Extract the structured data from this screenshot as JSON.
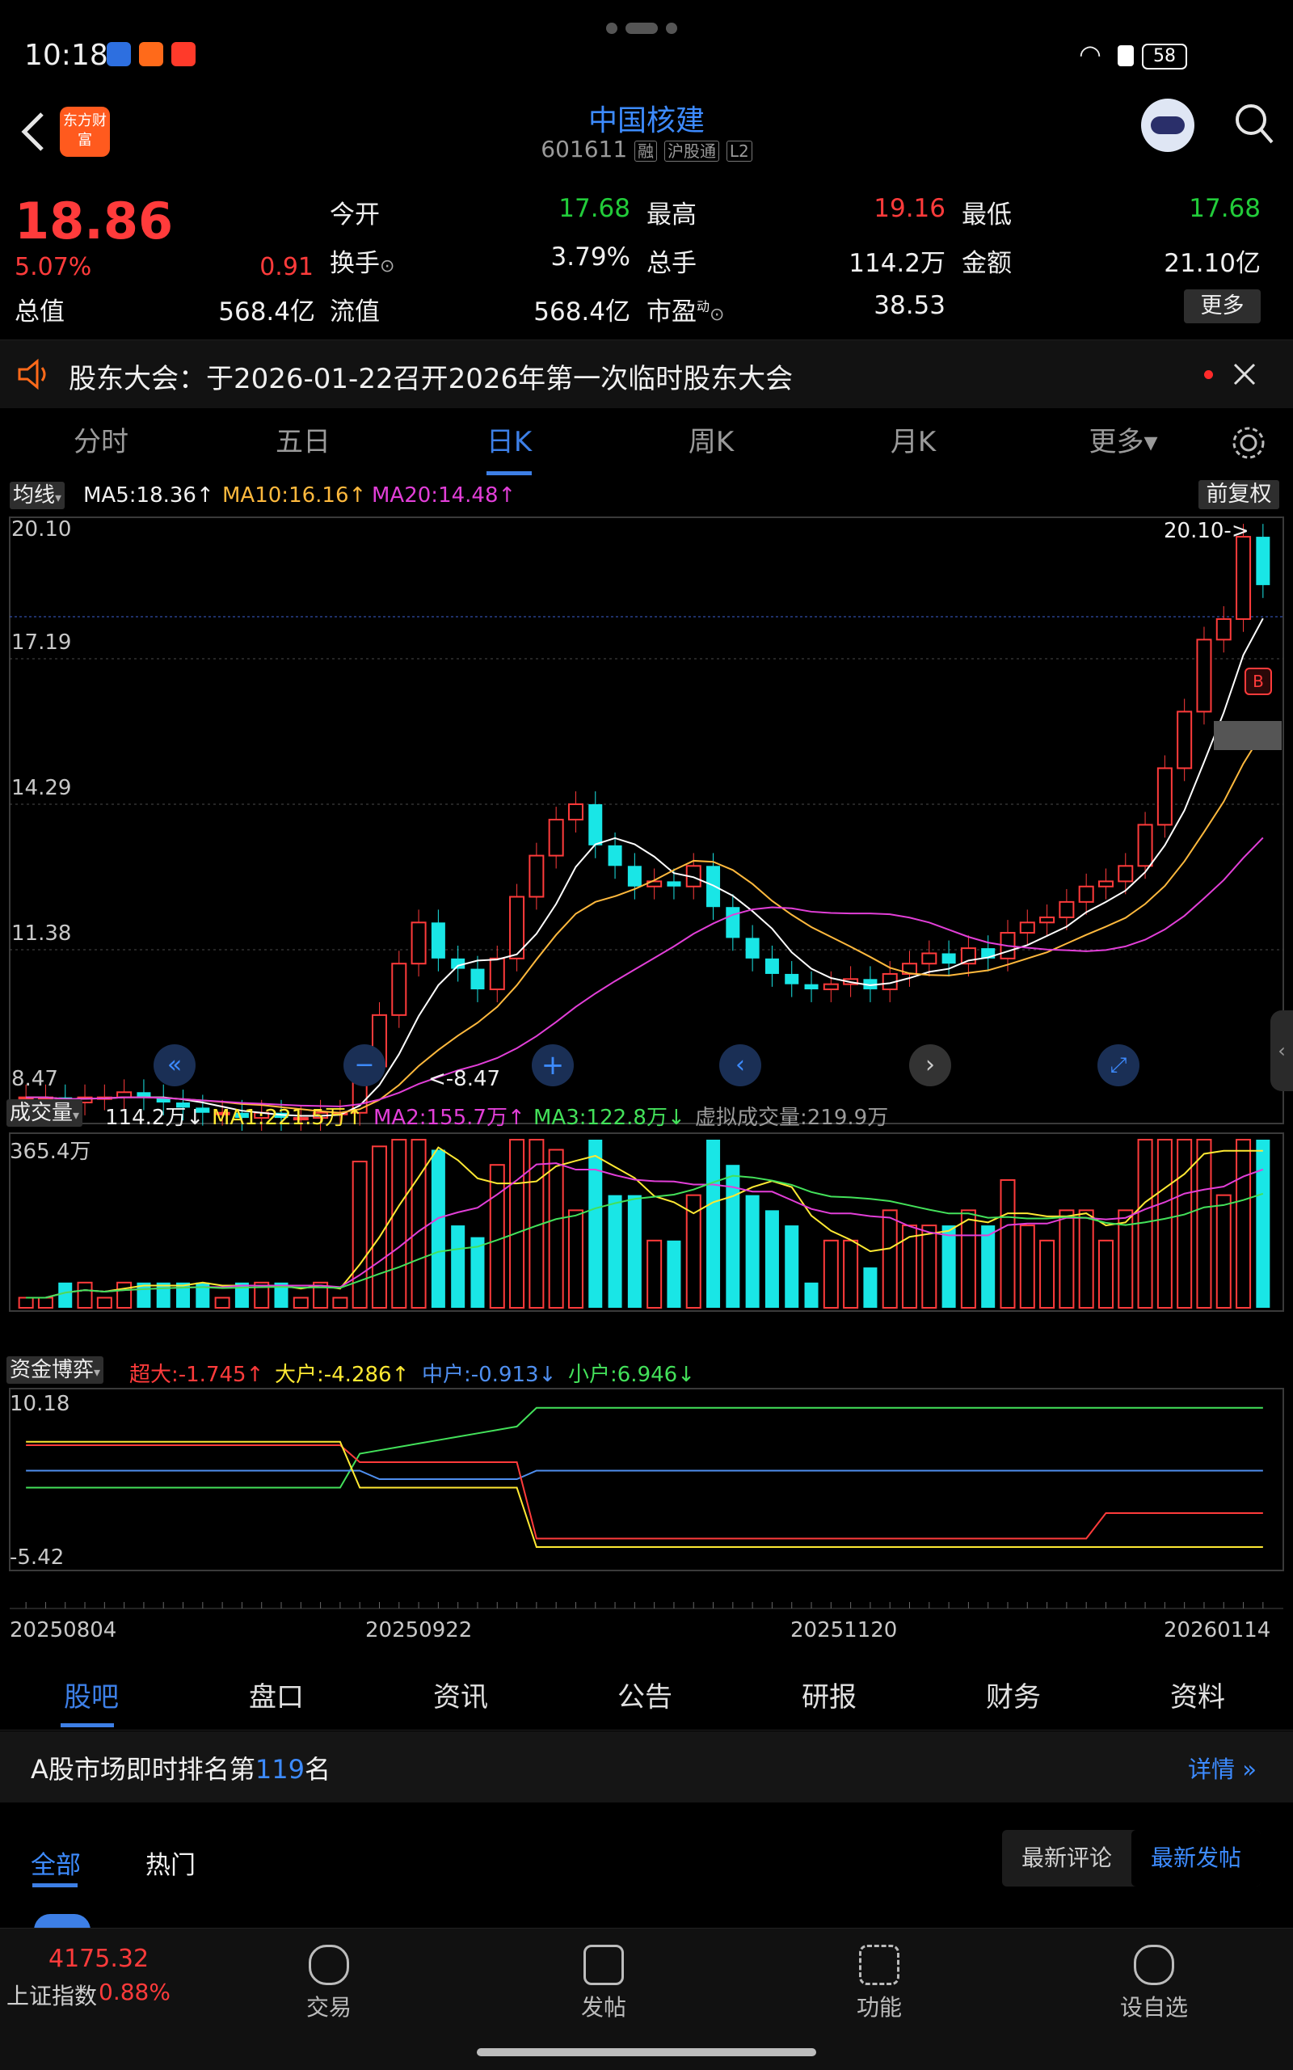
{
  "status": {
    "time": "10:18",
    "battery": "58"
  },
  "header": {
    "logo_text": "东方财富",
    "title": "中国核建",
    "code": "601611",
    "tags": [
      "融",
      "沪股通",
      "L2"
    ]
  },
  "quote": {
    "price": "18.86",
    "change_pct": "5.07%",
    "change": "0.91",
    "open_label": "今开",
    "open": "17.68",
    "high_label": "最高",
    "high": "19.16",
    "low_label": "最低",
    "low": "17.68",
    "turnover_label": "换手",
    "turnover": "3.79%",
    "volume_label": "总手",
    "volume": "114.2万",
    "amount_label": "金额",
    "amount": "21.10亿",
    "total_cap_label": "总值",
    "total_cap": "568.4亿",
    "float_cap_label": "流值",
    "float_cap": "568.4亿",
    "pe_label": "市盈",
    "pe_sup": "动",
    "pe": "38.53",
    "more_button": "更多"
  },
  "notice": {
    "text": "股东大会：于2026-01-22召开2026年第一次临时股东大会"
  },
  "chart_tabs": [
    "分时",
    "五日",
    "日K",
    "周K",
    "月K",
    "更多▾"
  ],
  "active_chart_tab": "日K",
  "kline": {
    "indicator_button": "均线",
    "ma5": "MA5:18.36↑",
    "ma10": "MA10:16.16↑",
    "ma20": "MA20:14.48↑",
    "adjust_button": "前复权",
    "y_labels": [
      "20.10",
      "17.19",
      "14.29",
      "11.38",
      "8.47"
    ],
    "max_marker": "20.10->",
    "min_marker": "<-8.47",
    "b_marker": "B"
  },
  "volume": {
    "indicator_button": "成交量",
    "current": "114.2万↓",
    "ma1": "MA1:221.5万↑",
    "ma2": "MA2:155.7万↑",
    "ma3": "MA3:122.8万↓",
    "virtual": "虚拟成交量:219.9万",
    "y_label": "365.4万"
  },
  "fund": {
    "indicator_button": "资金博弈",
    "super": "超大:-1.745↑",
    "big": "大户:-4.286↑",
    "mid": "中户:-0.913↓",
    "small": "小户:6.946↓",
    "y_top": "10.18",
    "y_bottom": "-5.42"
  },
  "x_dates": [
    "20250804",
    "20250922",
    "20251120",
    "20260114"
  ],
  "bottom_tabs": [
    "股吧",
    "盘口",
    "资讯",
    "公告",
    "研报",
    "财务",
    "资料"
  ],
  "active_bottom_tab": "股吧",
  "rank": {
    "prefix": "A股市场即时排名第",
    "number": "119",
    "suffix": "名",
    "detail": "详情"
  },
  "filters": {
    "all": "全部",
    "hot": "热门",
    "latest_comment": "最新评论",
    "latest_post": "最新发帖"
  },
  "index": {
    "value": "4175.32",
    "name": "上证指数",
    "pct": "0.88%"
  },
  "nav": [
    "交易",
    "发帖",
    "功能",
    "设自选"
  ],
  "colors": {
    "up": "#ff3b3b",
    "down": "#22cc3a",
    "accent": "#3d7fe6",
    "cyan_candle": "#19e6e6"
  },
  "chart_data": {
    "type": "candlestick",
    "ylim": [
      8.47,
      20.1
    ],
    "x_range": [
      "20250804",
      "20260114"
    ],
    "series": [
      {
        "name": "MA5",
        "last": 18.36
      },
      {
        "name": "MA10",
        "last": 16.16
      },
      {
        "name": "MA20",
        "last": 14.48
      }
    ],
    "approx_close_path": [
      8.9,
      8.9,
      8.8,
      8.9,
      8.9,
      9.0,
      8.9,
      8.8,
      8.7,
      8.6,
      8.6,
      8.5,
      8.6,
      8.5,
      8.5,
      8.6,
      8.6,
      9.5,
      10.5,
      11.5,
      12.3,
      11.6,
      11.4,
      11.0,
      11.6,
      12.8,
      13.6,
      14.3,
      14.6,
      13.8,
      13.4,
      13.0,
      13.1,
      13.0,
      13.4,
      12.6,
      12.0,
      11.6,
      11.3,
      11.1,
      11.0,
      11.1,
      11.2,
      11.0,
      11.3,
      11.5,
      11.7,
      11.5,
      11.8,
      11.6,
      12.1,
      12.3,
      12.4,
      12.7,
      13.0,
      13.1,
      13.4,
      14.2,
      15.3,
      16.4,
      17.8,
      18.2,
      19.8,
      18.86
    ]
  }
}
